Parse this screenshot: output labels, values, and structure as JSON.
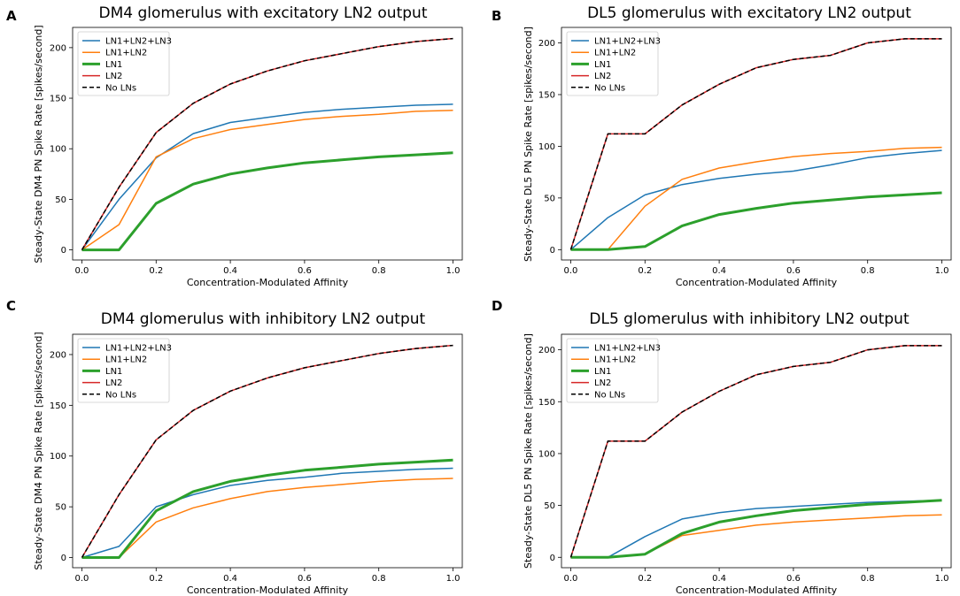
{
  "chart_data": [
    {
      "panel": "A",
      "type": "line",
      "title": "DM4 glomerulus with excitatory LN2 output",
      "xlabel": "Concentration-Modulated Affinity",
      "ylabel": "Steady-State DM4 PN Spike Rate [spikes/second]",
      "xlim": [
        -0.025,
        1.025
      ],
      "ylim": [
        -10,
        220
      ],
      "xticks": [
        0.0,
        0.2,
        0.4,
        0.6,
        0.8,
        1.0
      ],
      "xtick_labels": [
        "0.0",
        "0.2",
        "0.4",
        "0.6",
        "0.8",
        "1.0"
      ],
      "yticks": [
        0,
        50,
        100,
        150,
        200
      ],
      "ytick_labels": [
        "0",
        "50",
        "100",
        "150",
        "200"
      ],
      "legend_position": "top-left",
      "x": [
        0.0,
        0.1,
        0.2,
        0.3,
        0.4,
        0.5,
        0.6,
        0.7,
        0.8,
        0.9,
        1.0
      ],
      "series": [
        {
          "name": "LN1+LN2+LN3",
          "color": "#1f77b4",
          "width": 1.5,
          "dash": "",
          "values": [
            0,
            50,
            91,
            115,
            126,
            131,
            136,
            139,
            141,
            143,
            144
          ]
        },
        {
          "name": "LN1+LN2",
          "color": "#ff7f0e",
          "width": 1.5,
          "dash": "",
          "values": [
            0,
            25,
            92,
            110,
            119,
            124,
            129,
            132,
            134,
            137,
            138
          ]
        },
        {
          "name": "LN1",
          "color": "#2ca02c",
          "width": 3,
          "dash": "",
          "values": [
            0,
            0,
            46,
            65,
            75,
            81,
            86,
            89,
            92,
            94,
            96
          ]
        },
        {
          "name": "LN2",
          "color": "#d62728",
          "width": 1.5,
          "dash": "",
          "values": [
            0,
            62,
            116,
            145,
            164,
            177,
            187,
            194,
            201,
            206,
            209
          ]
        },
        {
          "name": "No LNs",
          "color": "#000000",
          "width": 1.5,
          "dash": "5,3",
          "values": [
            0,
            62,
            116,
            145,
            164,
            177,
            187,
            194,
            201,
            206,
            209
          ]
        }
      ]
    },
    {
      "panel": "B",
      "type": "line",
      "title": "DL5 glomerulus with excitatory LN2 output",
      "xlabel": "Concentration-Modulated Affinity",
      "ylabel": "Steady-State DL5 PN Spike Rate [spikes/second]",
      "xlim": [
        -0.025,
        1.025
      ],
      "ylim": [
        -10,
        215
      ],
      "xticks": [
        0.0,
        0.2,
        0.4,
        0.6,
        0.8,
        1.0
      ],
      "xtick_labels": [
        "0.0",
        "0.2",
        "0.4",
        "0.6",
        "0.8",
        "1.0"
      ],
      "yticks": [
        0,
        50,
        100,
        150,
        200
      ],
      "ytick_labels": [
        "0",
        "50",
        "100",
        "150",
        "200"
      ],
      "legend_position": "top-left",
      "x": [
        0.0,
        0.1,
        0.2,
        0.3,
        0.4,
        0.5,
        0.6,
        0.7,
        0.8,
        0.9,
        1.0
      ],
      "series": [
        {
          "name": "LN1+LN2+LN3",
          "color": "#1f77b4",
          "width": 1.5,
          "dash": "",
          "values": [
            0,
            31,
            53,
            63,
            69,
            73,
            76,
            82,
            89,
            93,
            96
          ]
        },
        {
          "name": "LN1+LN2",
          "color": "#ff7f0e",
          "width": 1.5,
          "dash": "",
          "values": [
            0,
            0,
            42,
            68,
            79,
            85,
            90,
            93,
            95,
            98,
            99
          ]
        },
        {
          "name": "LN1",
          "color": "#2ca02c",
          "width": 3,
          "dash": "",
          "values": [
            0,
            0,
            3,
            23,
            34,
            40,
            45,
            48,
            51,
            53,
            55
          ]
        },
        {
          "name": "LN2",
          "color": "#d62728",
          "width": 1.5,
          "dash": "",
          "values": [
            0,
            112,
            112,
            140,
            160,
            176,
            184,
            188,
            200,
            204,
            204
          ]
        },
        {
          "name": "No LNs",
          "color": "#000000",
          "width": 1.5,
          "dash": "5,3",
          "values": [
            0,
            112,
            112,
            140,
            160,
            176,
            184,
            188,
            200,
            204,
            204
          ]
        }
      ]
    },
    {
      "panel": "C",
      "type": "line",
      "title": "DM4 glomerulus with inhibitory LN2 output",
      "xlabel": "Concentration-Modulated Affinity",
      "ylabel": "Steady-State DM4 PN Spike Rate [spikes/second]",
      "xlim": [
        -0.025,
        1.025
      ],
      "ylim": [
        -10,
        220
      ],
      "xticks": [
        0.0,
        0.2,
        0.4,
        0.6,
        0.8,
        1.0
      ],
      "xtick_labels": [
        "0.0",
        "0.2",
        "0.4",
        "0.6",
        "0.8",
        "1.0"
      ],
      "yticks": [
        0,
        50,
        100,
        150,
        200
      ],
      "ytick_labels": [
        "0",
        "50",
        "100",
        "150",
        "200"
      ],
      "legend_position": "top-left",
      "x": [
        0.0,
        0.1,
        0.2,
        0.3,
        0.4,
        0.5,
        0.6,
        0.7,
        0.8,
        0.9,
        1.0
      ],
      "series": [
        {
          "name": "LN1+LN2+LN3",
          "color": "#1f77b4",
          "width": 1.5,
          "dash": "",
          "values": [
            0,
            11,
            50,
            62,
            71,
            76,
            79,
            83,
            85,
            87,
            88
          ]
        },
        {
          "name": "LN1+LN2",
          "color": "#ff7f0e",
          "width": 1.5,
          "dash": "",
          "values": [
            0,
            0,
            35,
            49,
            58,
            65,
            69,
            72,
            75,
            77,
            78
          ]
        },
        {
          "name": "LN1",
          "color": "#2ca02c",
          "width": 3,
          "dash": "",
          "values": [
            0,
            0,
            46,
            65,
            75,
            81,
            86,
            89,
            92,
            94,
            96
          ]
        },
        {
          "name": "LN2",
          "color": "#d62728",
          "width": 1.5,
          "dash": "",
          "values": [
            0,
            62,
            116,
            145,
            164,
            177,
            187,
            194,
            201,
            206,
            209
          ]
        },
        {
          "name": "No LNs",
          "color": "#000000",
          "width": 1.5,
          "dash": "5,3",
          "values": [
            0,
            62,
            116,
            145,
            164,
            177,
            187,
            194,
            201,
            206,
            209
          ]
        }
      ]
    },
    {
      "panel": "D",
      "type": "line",
      "title": "DL5 glomerulus with inhibitory LN2 output",
      "xlabel": "Concentration-Modulated Affinity",
      "ylabel": "Steady-State DL5 PN Spike Rate [spikes/second]",
      "xlim": [
        -0.025,
        1.025
      ],
      "ylim": [
        -10,
        215
      ],
      "xticks": [
        0.0,
        0.2,
        0.4,
        0.6,
        0.8,
        1.0
      ],
      "xtick_labels": [
        "0.0",
        "0.2",
        "0.4",
        "0.6",
        "0.8",
        "1.0"
      ],
      "yticks": [
        0,
        50,
        100,
        150,
        200
      ],
      "ytick_labels": [
        "0",
        "50",
        "100",
        "150",
        "200"
      ],
      "legend_position": "top-left",
      "x": [
        0.0,
        0.1,
        0.2,
        0.3,
        0.4,
        0.5,
        0.6,
        0.7,
        0.8,
        0.9,
        1.0
      ],
      "series": [
        {
          "name": "LN1+LN2+LN3",
          "color": "#1f77b4",
          "width": 1.5,
          "dash": "",
          "values": [
            0,
            0,
            20,
            37,
            43,
            47,
            49,
            51,
            53,
            54,
            55
          ]
        },
        {
          "name": "LN1+LN2",
          "color": "#ff7f0e",
          "width": 1.5,
          "dash": "",
          "values": [
            0,
            0,
            3,
            21,
            26,
            31,
            34,
            36,
            38,
            40,
            41
          ]
        },
        {
          "name": "LN1",
          "color": "#2ca02c",
          "width": 3,
          "dash": "",
          "values": [
            0,
            0,
            3,
            23,
            34,
            40,
            45,
            48,
            51,
            53,
            55
          ]
        },
        {
          "name": "LN2",
          "color": "#d62728",
          "width": 1.5,
          "dash": "",
          "values": [
            0,
            112,
            112,
            140,
            160,
            176,
            184,
            188,
            200,
            204,
            204
          ]
        },
        {
          "name": "No LNs",
          "color": "#000000",
          "width": 1.5,
          "dash": "5,3",
          "values": [
            0,
            112,
            112,
            140,
            160,
            176,
            184,
            188,
            200,
            204,
            204
          ]
        }
      ]
    }
  ]
}
